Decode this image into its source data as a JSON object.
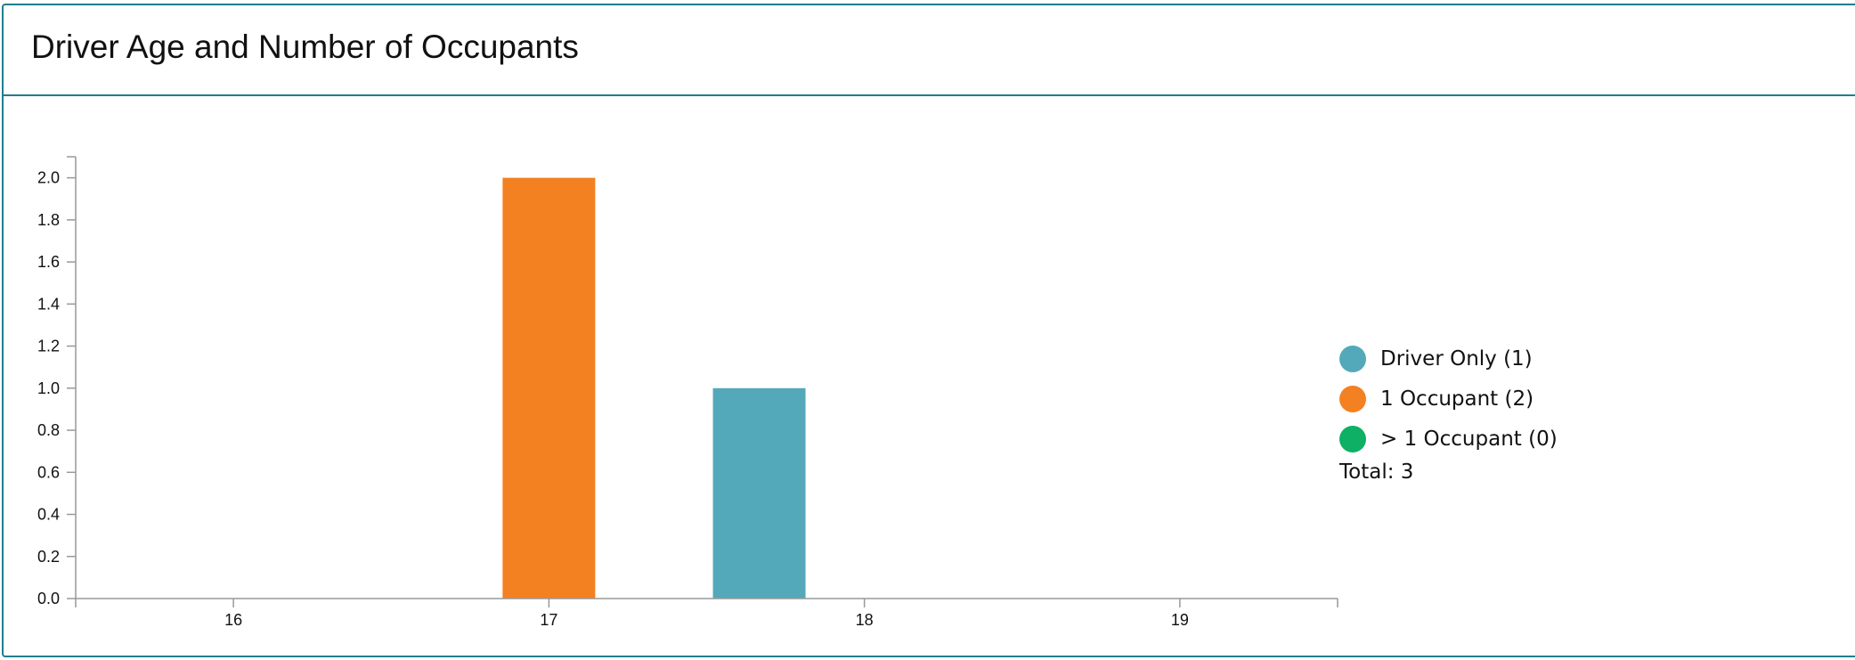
{
  "panel": {
    "title": "Driver Age and Number of Occupants"
  },
  "chart_data": {
    "type": "bar",
    "categories": [
      "16",
      "17",
      "18",
      "19"
    ],
    "series": [
      {
        "name": "Driver Only",
        "values": [
          0,
          0,
          1,
          0
        ],
        "color": "#53a9ba"
      },
      {
        "name": "1 Occupant",
        "values": [
          0,
          2,
          0,
          0
        ],
        "color": "#f38121"
      },
      {
        "name": "> 1 Occupant",
        "values": [
          0,
          0,
          0,
          0
        ],
        "color": "#0eb065"
      }
    ],
    "ylim": [
      0,
      2.1
    ],
    "yticks": [
      "0.0",
      "0.2",
      "0.4",
      "0.6",
      "0.8",
      "1.0",
      "1.2",
      "1.4",
      "1.6",
      "1.8",
      "2.0"
    ],
    "legend_position": "right",
    "legend": [
      {
        "label": "Driver Only (1)",
        "color": "#53a9ba"
      },
      {
        "label": "1 Occupant (2)",
        "color": "#f38121"
      },
      {
        "label": "> 1 Occupant (0)",
        "color": "#0eb065"
      }
    ],
    "total_label": "Total: 3"
  }
}
